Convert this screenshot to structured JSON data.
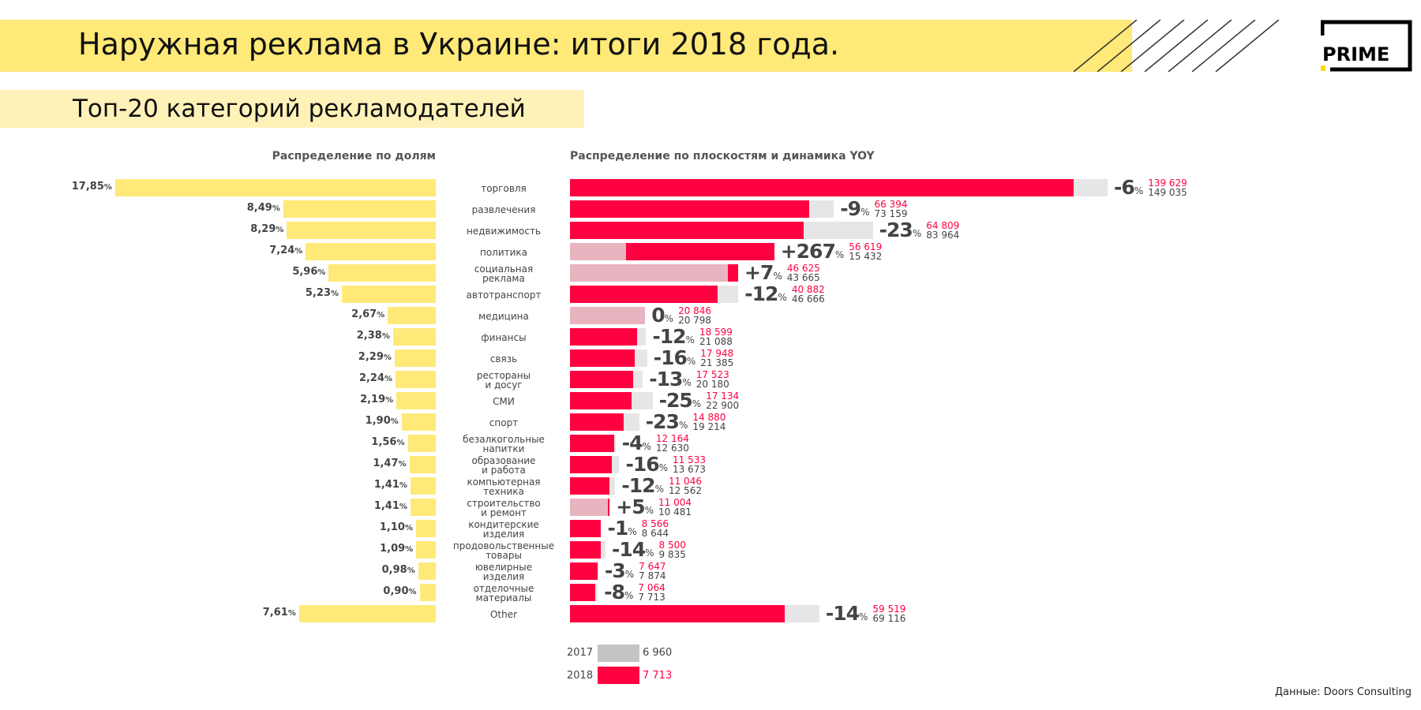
{
  "header": {
    "title": "Наружная реклама в Украине: итоги 2018 года.",
    "logo_text": "PRIME"
  },
  "subtitle": "Топ-20 категорий рекламодателей",
  "footer": "Данные: Doors Consulting",
  "colors": {
    "yellow": "#ffe978",
    "red": "#ff0040",
    "gray": "#e6e6e6",
    "pink": "#e8b4c0"
  },
  "chart_data": {
    "type": "bar",
    "left_title": "Распределение по долям",
    "right_title": "Распределение по плоскостям и динамика YOY",
    "legend": [
      {
        "year": "2017",
        "value": "6 960",
        "color": "#c4c4c4"
      },
      {
        "year": "2018",
        "value": "7 713",
        "color": "#ff0040"
      }
    ],
    "rows": [
      {
        "category": "торговля",
        "share": "17,85",
        "share_num": 17.85,
        "yoy": "-6",
        "v2018": 139629,
        "v2017": 149035,
        "v2018_label": "139 629",
        "v2017_label": "149 035"
      },
      {
        "category": "развлечения",
        "share": "8,49",
        "share_num": 8.49,
        "yoy": "-9",
        "v2018": 66394,
        "v2017": 73159,
        "v2018_label": "66 394",
        "v2017_label": "73 159"
      },
      {
        "category": "недвижимость",
        "share": "8,29",
        "share_num": 8.29,
        "yoy": "-23",
        "v2018": 64809,
        "v2017": 83964,
        "v2018_label": "64 809",
        "v2017_label": "83 964"
      },
      {
        "category": "политика",
        "share": "7,24",
        "share_num": 7.24,
        "yoy": "+267",
        "v2018": 56619,
        "v2017": 15432,
        "v2018_label": "56 619",
        "v2017_label": "15 432"
      },
      {
        "category": "социальная\nреклама",
        "share": "5,96",
        "share_num": 5.96,
        "yoy": "+7",
        "v2018": 46625,
        "v2017": 43665,
        "v2018_label": "46 625",
        "v2017_label": "43 665"
      },
      {
        "category": "автотранспорт",
        "share": "5,23",
        "share_num": 5.23,
        "yoy": "-12",
        "v2018": 40882,
        "v2017": 46666,
        "v2018_label": "40 882",
        "v2017_label": "46 666"
      },
      {
        "category": "медицина",
        "share": "2,67",
        "share_num": 2.67,
        "yoy": "0",
        "v2018": 20846,
        "v2017": 20798,
        "v2018_label": "20 846",
        "v2017_label": "20 798"
      },
      {
        "category": "финансы",
        "share": "2,38",
        "share_num": 2.38,
        "yoy": "-12",
        "v2018": 18599,
        "v2017": 21088,
        "v2018_label": "18 599",
        "v2017_label": "21 088"
      },
      {
        "category": "связь",
        "share": "2,29",
        "share_num": 2.29,
        "yoy": "-16",
        "v2018": 17948,
        "v2017": 21385,
        "v2018_label": "17 948",
        "v2017_label": "21 385"
      },
      {
        "category": "рестораны\nи досуг",
        "share": "2,24",
        "share_num": 2.24,
        "yoy": "-13",
        "v2018": 17523,
        "v2017": 20180,
        "v2018_label": "17 523",
        "v2017_label": "20 180"
      },
      {
        "category": "СМИ",
        "share": "2,19",
        "share_num": 2.19,
        "yoy": "-25",
        "v2018": 17134,
        "v2017": 22900,
        "v2018_label": "17 134",
        "v2017_label": "22 900"
      },
      {
        "category": "спорт",
        "share": "1,90",
        "share_num": 1.9,
        "yoy": "-23",
        "v2018": 14880,
        "v2017": 19214,
        "v2018_label": "14 880",
        "v2017_label": "19 214"
      },
      {
        "category": "безалкогольные\nнапитки",
        "share": "1,56",
        "share_num": 1.56,
        "yoy": "-4",
        "v2018": 12164,
        "v2017": 12630,
        "v2018_label": "12 164",
        "v2017_label": "12 630"
      },
      {
        "category": "образование\nи работа",
        "share": "1,47",
        "share_num": 1.47,
        "yoy": "-16",
        "v2018": 11533,
        "v2017": 13673,
        "v2018_label": "11 533",
        "v2017_label": "13 673"
      },
      {
        "category": "компьютерная\nтехника",
        "share": "1,41",
        "share_num": 1.41,
        "yoy": "-12",
        "v2018": 11046,
        "v2017": 12562,
        "v2018_label": "11 046",
        "v2017_label": "12 562"
      },
      {
        "category": "строительство\nи ремонт",
        "share": "1,41",
        "share_num": 1.41,
        "yoy": "+5",
        "v2018": 11004,
        "v2017": 10481,
        "v2018_label": "11 004",
        "v2017_label": "10 481"
      },
      {
        "category": "кондитерские\nизделия",
        "share": "1,10",
        "share_num": 1.1,
        "yoy": "-1",
        "v2018": 8566,
        "v2017": 8644,
        "v2018_label": "8 566",
        "v2017_label": "8 644"
      },
      {
        "category": "продовольственные\nтовары",
        "share": "1,09",
        "share_num": 1.09,
        "yoy": "-14",
        "v2018": 8500,
        "v2017": 9835,
        "v2018_label": "8 500",
        "v2017_label": "9 835"
      },
      {
        "category": "ювелирные\nизделия",
        "share": "0,98",
        "share_num": 0.98,
        "yoy": "-3",
        "v2018": 7647,
        "v2017": 7874,
        "v2018_label": "7 647",
        "v2017_label": "7 874"
      },
      {
        "category": "отделочные\nматериалы",
        "share": "0,90",
        "share_num": 0.9,
        "yoy": "-8",
        "v2018": 7064,
        "v2017": 7713,
        "v2018_label": "7 064",
        "v2017_label": "7 713"
      },
      {
        "category": "Other",
        "share": "7,61",
        "share_num": 7.61,
        "yoy": "-14",
        "v2018": 59519,
        "v2017": 69116,
        "v2018_label": "59 519",
        "v2017_label": "69 116"
      }
    ],
    "percent_sign": "%"
  }
}
